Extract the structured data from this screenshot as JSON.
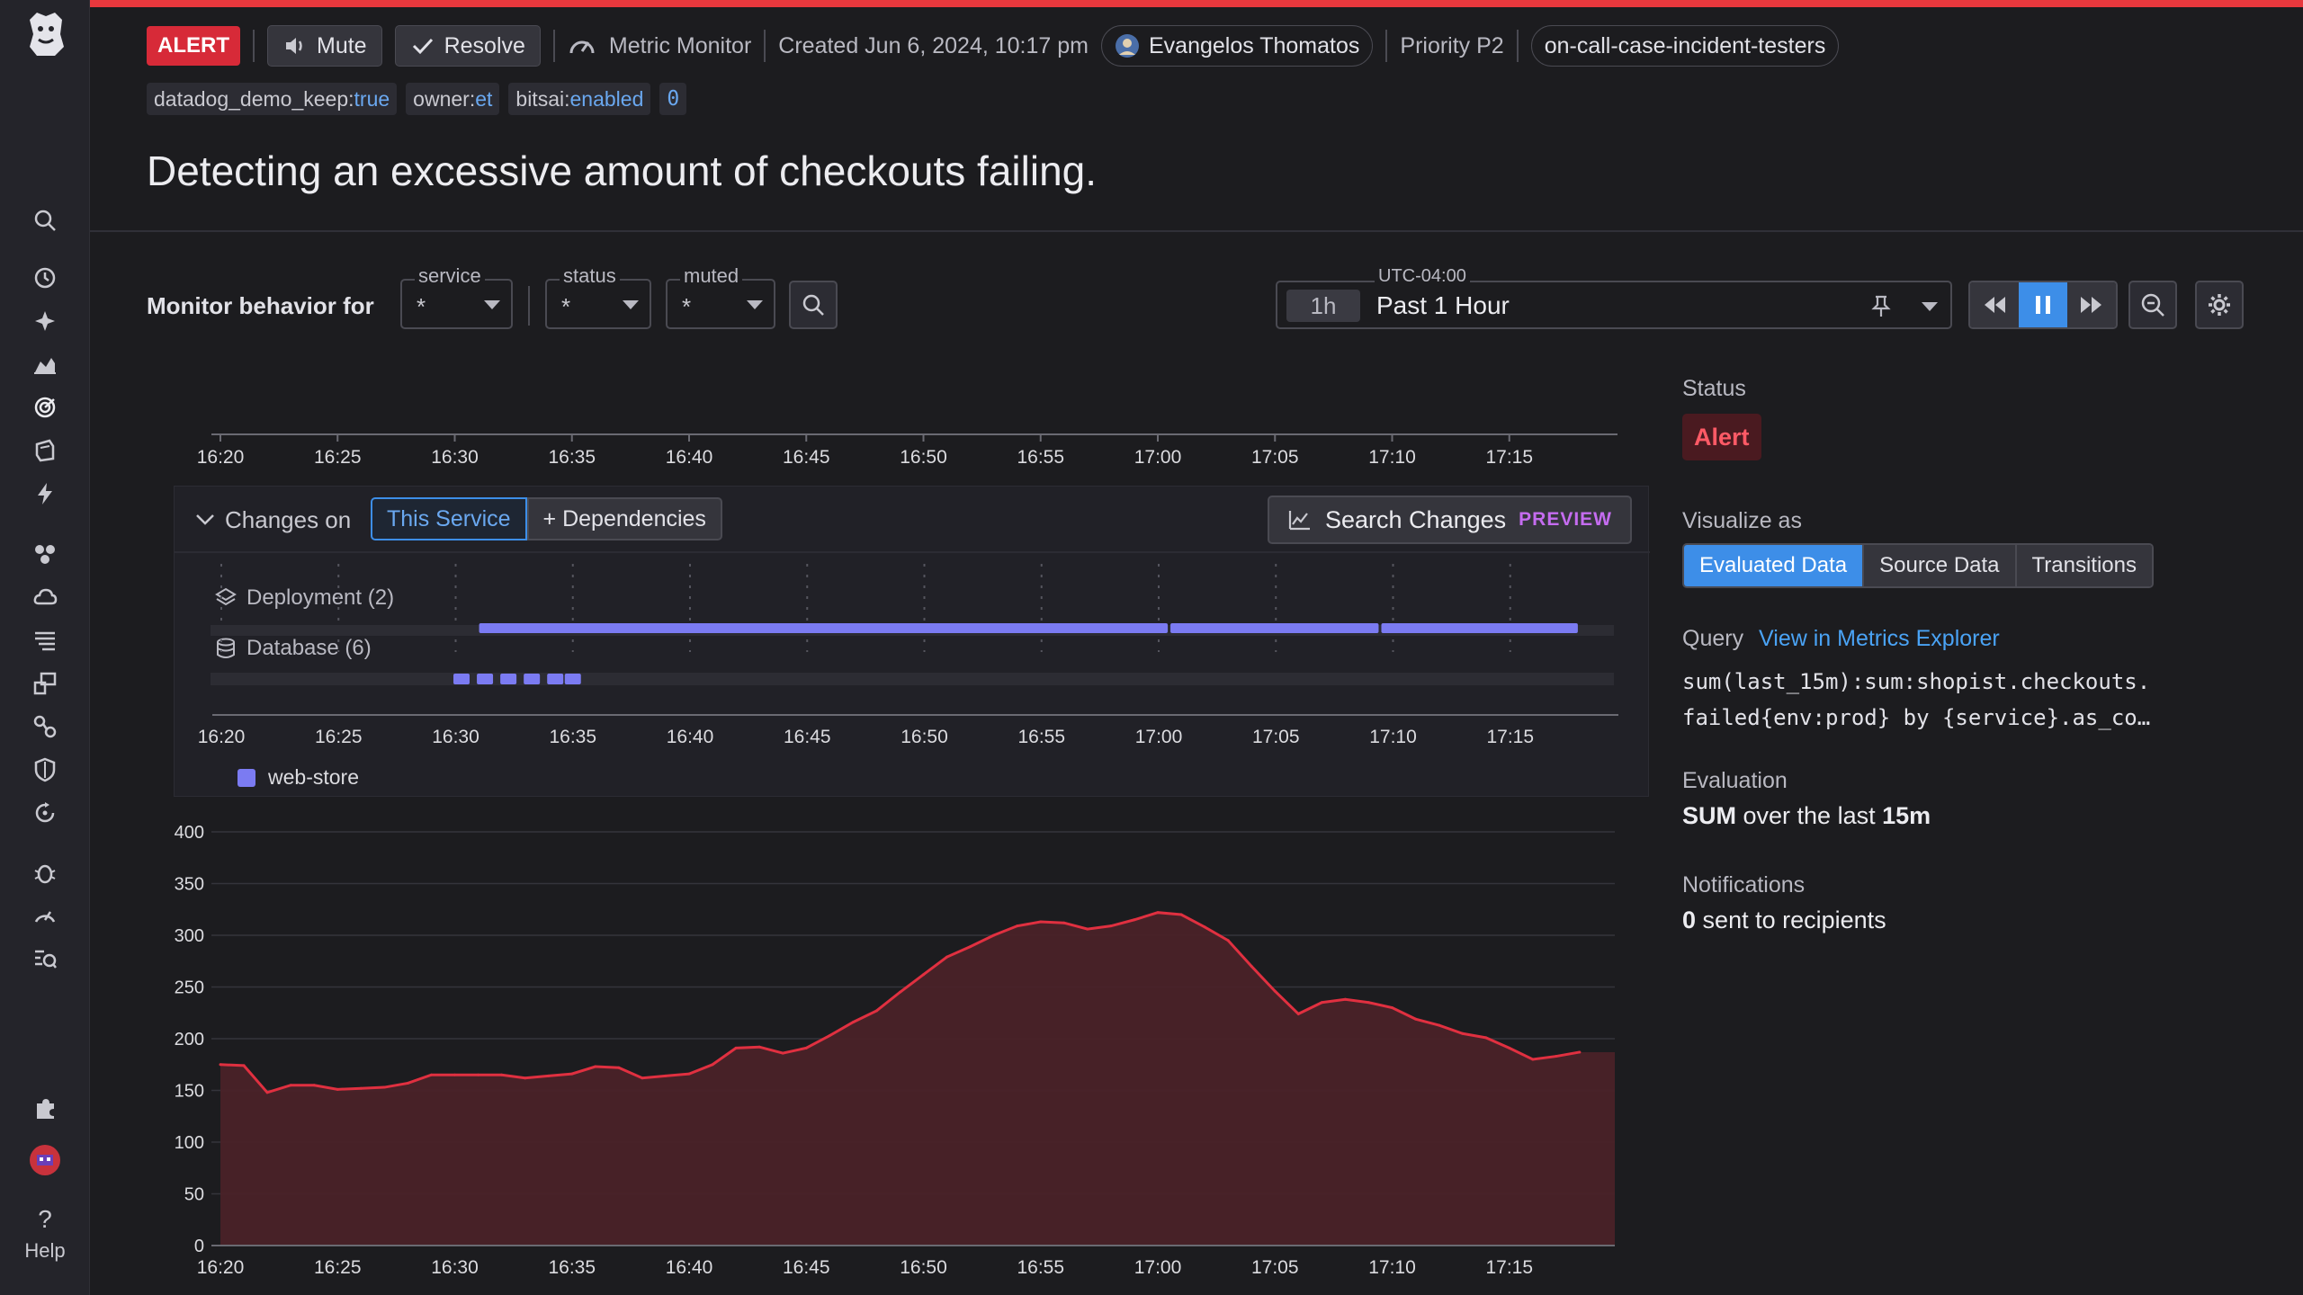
{
  "header": {
    "alert_badge": "ALERT",
    "mute_label": "Mute",
    "resolve_label": "Resolve",
    "monitor_type": "Metric Monitor",
    "created": "Created Jun 6, 2024, 10:17 pm",
    "owner": "Evangelos Thomatos",
    "priority": "Priority P2",
    "team": "on-call-case-incident-testers",
    "tags": [
      {
        "key": "datadog_demo_keep:",
        "value": "true"
      },
      {
        "key": "owner:",
        "value": "et"
      },
      {
        "key": "bitsai:",
        "value": "enabled"
      },
      {
        "key": "",
        "value": "0"
      }
    ],
    "title": "Detecting an excessive amount of checkouts failing."
  },
  "filters": {
    "label": "Monitor behavior for",
    "service": {
      "label": "service",
      "value": "*"
    },
    "status": {
      "label": "status",
      "value": "*"
    },
    "muted": {
      "label": "muted",
      "value": "*"
    }
  },
  "timepicker": {
    "timezone": "UTC-04:00",
    "chip": "1h",
    "range": "Past 1 Hour"
  },
  "sidebar": {
    "help_label": "Help",
    "icons": [
      "search-icon",
      "history-icon",
      "sparkle-icon",
      "dashboards-icon",
      "monitors-icon",
      "watchdog-icon",
      "events-icon",
      "infrastructure-icon",
      "cloud-icon",
      "logs-icon",
      "apm-icon",
      "traces-icon",
      "security-icon",
      "rum-icon",
      "bug-icon",
      "synthetics-icon",
      "ci-icon",
      "integrations-icon",
      "avatar"
    ]
  },
  "right_panel": {
    "status_label": "Status",
    "status_value": "Alert",
    "visualize_label": "Visualize as",
    "visualize_options": [
      "Evaluated Data",
      "Source Data",
      "Transitions"
    ],
    "query_label": "Query",
    "query_link": "View in Metrics Explorer",
    "query_line1": "sum(last_15m):sum:shopist.checkouts.",
    "query_line2": "failed{env:prod} by {service}.as_co…",
    "evaluation_label": "Evaluation",
    "evaluation_agg": "SUM",
    "evaluation_mid": "over the last",
    "evaluation_window": "15m",
    "notifications_label": "Notifications",
    "notifications_count": "0",
    "notifications_text": "sent to recipients"
  },
  "changes": {
    "title": "Changes on",
    "this_service": "This Service",
    "dependencies": "+ Dependencies",
    "search_label": "Search Changes",
    "preview_tag": "PREVIEW",
    "deployment_label": "Deployment (2)",
    "database_label": "Database (6)",
    "legend_service": "web-store",
    "time_ticks": [
      "16:20",
      "16:25",
      "16:30",
      "16:35",
      "16:40",
      "16:45",
      "16:50",
      "16:55",
      "17:00",
      "17:05",
      "17:10",
      "17:15"
    ],
    "deployment_bars": [
      [
        "16:31",
        "17:00:30"
      ],
      [
        "17:00:30",
        "17:09:30"
      ],
      [
        "17:09:30",
        "17:18"
      ]
    ],
    "database_events": [
      "16:30:15",
      "16:31:15",
      "16:32:15",
      "16:33:15",
      "16:34:15",
      "16:35"
    ]
  },
  "colors": {
    "alert_red": "#d72a38",
    "line_red": "#e03040",
    "accent_blue": "#3d8ee8",
    "change_purple": "#7b7bf2"
  },
  "chart_data": {
    "type": "area",
    "x_start": "16:20",
    "x_step_minutes": 1,
    "x_ticks": [
      "16:20",
      "16:25",
      "16:30",
      "16:35",
      "16:40",
      "16:45",
      "16:50",
      "16:55",
      "17:00",
      "17:05",
      "17:10",
      "17:15"
    ],
    "y_ticks": [
      0,
      50,
      100,
      150,
      200,
      250,
      300,
      350,
      400
    ],
    "ylim": [
      0,
      400
    ],
    "series": [
      {
        "values": [
          175,
          174,
          148,
          155,
          155,
          151,
          152,
          153,
          157,
          165,
          165,
          165,
          165,
          162,
          164,
          166,
          173,
          172,
          162,
          164,
          166,
          175,
          191,
          192,
          186,
          191,
          203,
          216,
          227,
          245,
          262,
          279,
          289,
          300,
          309,
          313,
          312,
          306,
          309,
          315,
          322,
          320,
          308,
          295,
          270,
          246,
          224,
          235,
          238,
          235,
          230,
          219,
          213,
          205,
          201,
          191,
          180,
          183,
          187
        ]
      }
    ]
  }
}
